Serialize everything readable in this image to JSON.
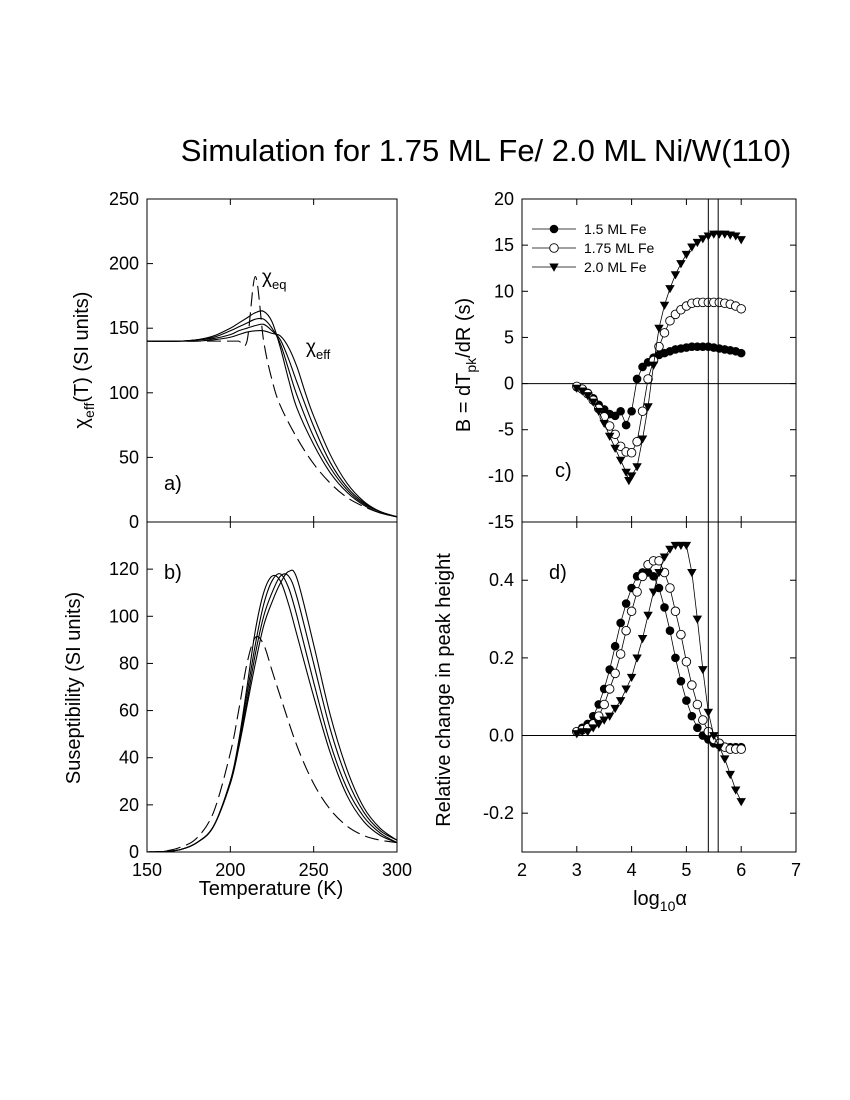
{
  "title": "Simulation for 1.75 ML Fe/ 2.0 ML Ni/W(110)",
  "left": {
    "xlabel": "Temperature (K)",
    "xticks": [
      "150",
      "200",
      "250",
      "300"
    ],
    "xlim": [
      150,
      300
    ]
  },
  "right": {
    "xlabel_prefix": "log",
    "xlabel_sub": "10",
    "xlabel_suffix": "α",
    "xticks": [
      "2",
      "3",
      "4",
      "5",
      "6",
      "7"
    ],
    "xlim": [
      2,
      7
    ],
    "vlines": [
      5.4,
      5.58
    ]
  },
  "chart_data": [
    {
      "id": "a",
      "type": "line",
      "panel_label": "a)",
      "ylabel_main": "χ",
      "ylabel_sub": "eff",
      "ylabel_rest": "(T) (SI units)",
      "ylim": [
        0,
        250
      ],
      "yticks": [
        "0",
        "50",
        "100",
        "150",
        "200",
        "250"
      ],
      "annotations": [
        {
          "main": "χ",
          "sub": "eq"
        },
        {
          "main": "χ",
          "sub": "eff"
        }
      ],
      "series": [
        {
          "style": "dashed",
          "x": [
            150,
            160,
            170,
            180,
            190,
            200,
            205,
            210,
            215,
            220,
            225,
            230,
            240,
            250,
            260,
            270,
            280,
            290,
            300
          ],
          "y": [
            140,
            140,
            140,
            140,
            140,
            140,
            140,
            140,
            190,
            140,
            110,
            90,
            65,
            45,
            30,
            19,
            12,
            7,
            4
          ]
        },
        {
          "style": "solid",
          "x": [
            150,
            170,
            180,
            190,
            200,
            205,
            210,
            215,
            220,
            225,
            230,
            235,
            240,
            250,
            260,
            270,
            280,
            290,
            300
          ],
          "y": [
            140,
            140,
            141,
            144,
            150,
            154,
            158,
            162,
            163,
            155,
            135,
            110,
            88,
            60,
            38,
            23,
            13,
            7,
            4
          ]
        },
        {
          "style": "solid",
          "x": [
            150,
            170,
            180,
            190,
            200,
            205,
            210,
            215,
            220,
            225,
            230,
            235,
            240,
            250,
            260,
            270,
            280,
            290,
            300
          ],
          "y": [
            140,
            140,
            141,
            143,
            148,
            151,
            154,
            157,
            157,
            150,
            138,
            118,
            98,
            66,
            42,
            25,
            14,
            8,
            4
          ]
        },
        {
          "style": "solid",
          "x": [
            150,
            170,
            180,
            190,
            200,
            205,
            210,
            215,
            220,
            225,
            230,
            235,
            240,
            250,
            260,
            270,
            280,
            290,
            300
          ],
          "y": [
            140,
            140,
            141,
            142,
            145,
            148,
            150,
            152,
            153,
            148,
            141,
            126,
            108,
            74,
            46,
            27,
            15,
            8,
            4
          ]
        },
        {
          "style": "solid",
          "x": [
            150,
            170,
            180,
            190,
            200,
            205,
            210,
            215,
            220,
            225,
            230,
            235,
            240,
            245,
            250,
            260,
            270,
            280,
            290,
            300
          ],
          "y": [
            140,
            140,
            140,
            141,
            143,
            145,
            147,
            148,
            148,
            146,
            144,
            135,
            120,
            100,
            82,
            52,
            30,
            16,
            8,
            4
          ]
        }
      ]
    },
    {
      "id": "b",
      "type": "line",
      "panel_label": "b)",
      "ylabel": "Suseptibility (SI units)",
      "ylim": [
        0,
        140
      ],
      "yticks": [
        "0",
        "20",
        "40",
        "60",
        "80",
        "100",
        "120"
      ],
      "series": [
        {
          "style": "dashed",
          "x": [
            150,
            160,
            170,
            180,
            190,
            200,
            205,
            210,
            215,
            220,
            225,
            230,
            240,
            250,
            260,
            270,
            280,
            290,
            300
          ],
          "y": [
            0,
            0.3,
            2,
            6,
            17,
            42,
            60,
            80,
            91,
            88,
            77,
            66,
            45,
            29,
            18,
            11,
            7,
            5,
            4
          ]
        },
        {
          "style": "solid",
          "x": [
            150,
            160,
            170,
            180,
            190,
            200,
            205,
            210,
            215,
            220,
            225,
            230,
            235,
            240,
            250,
            260,
            270,
            280,
            290,
            300
          ],
          "y": [
            0,
            0.2,
            1,
            4,
            11,
            30,
            47,
            70,
            94,
            110,
            117,
            115,
            105,
            92,
            66,
            42,
            24,
            13,
            7,
            4
          ]
        },
        {
          "style": "solid",
          "x": [
            150,
            160,
            170,
            180,
            190,
            200,
            205,
            210,
            215,
            220,
            225,
            230,
            235,
            240,
            250,
            260,
            270,
            280,
            290,
            300
          ],
          "y": [
            0,
            0.2,
            1,
            4,
            11,
            30,
            46,
            67,
            88,
            105,
            115,
            118,
            112,
            100,
            72,
            46,
            27,
            15,
            8,
            4
          ]
        },
        {
          "style": "solid",
          "x": [
            150,
            160,
            170,
            180,
            190,
            200,
            205,
            210,
            215,
            220,
            225,
            230,
            235,
            240,
            250,
            260,
            270,
            280,
            290,
            300
          ],
          "y": [
            0,
            0.2,
            1,
            4,
            11,
            30,
            45,
            64,
            84,
            100,
            110,
            117,
            117,
            108,
            80,
            52,
            31,
            17,
            9,
            5
          ]
        },
        {
          "style": "solid",
          "x": [
            150,
            160,
            170,
            180,
            190,
            200,
            205,
            210,
            215,
            220,
            225,
            230,
            235,
            240,
            250,
            260,
            270,
            280,
            290,
            300
          ],
          "y": [
            0,
            0.2,
            1,
            4,
            11,
            29,
            44,
            62,
            80,
            96,
            106,
            114,
            119,
            116,
            88,
            58,
            35,
            19,
            10,
            5
          ]
        }
      ]
    },
    {
      "id": "c",
      "type": "scatter",
      "panel_label": "c)",
      "ylabel_prefix": "B = dT",
      "ylabel_sub": "pk",
      "ylabel_suffix": "/dR (s)",
      "ylim": [
        -15,
        20
      ],
      "yticks": [
        "-15",
        "-10",
        "-5",
        "0",
        "5",
        "10",
        "15",
        "20"
      ],
      "hline": 0,
      "legend_position": "top-left",
      "series": [
        {
          "name": "1.5 ML Fe",
          "marker": "filled-circle",
          "x": [
            3.0,
            3.1,
            3.2,
            3.3,
            3.4,
            3.5,
            3.6,
            3.7,
            3.8,
            3.9,
            4.0,
            4.1,
            4.2,
            4.3,
            4.4,
            4.5,
            4.6,
            4.7,
            4.8,
            4.9,
            5.0,
            5.1,
            5.2,
            5.3,
            5.4,
            5.5,
            5.6,
            5.7,
            5.8,
            5.9,
            6.0
          ],
          "y": [
            -0.4,
            -0.6,
            -1.0,
            -1.6,
            -2.3,
            -2.8,
            -3.3,
            -3.5,
            -3.0,
            -4.5,
            -3.0,
            0.5,
            1.8,
            2.3,
            2.8,
            3.1,
            3.3,
            3.5,
            3.7,
            3.8,
            3.9,
            4.0,
            4.0,
            4.0,
            4.0,
            3.9,
            3.8,
            3.7,
            3.6,
            3.5,
            3.3
          ]
        },
        {
          "name": "1.75 ML Fe",
          "marker": "open-circle",
          "x": [
            3.0,
            3.1,
            3.2,
            3.3,
            3.4,
            3.5,
            3.6,
            3.7,
            3.8,
            3.9,
            4.0,
            4.1,
            4.2,
            4.3,
            4.4,
            4.5,
            4.6,
            4.7,
            4.8,
            4.9,
            5.0,
            5.1,
            5.2,
            5.3,
            5.4,
            5.5,
            5.6,
            5.7,
            5.8,
            5.9,
            6.0
          ],
          "y": [
            -0.3,
            -0.6,
            -1.1,
            -1.8,
            -2.7,
            -3.6,
            -4.6,
            -5.5,
            -6.8,
            -7.4,
            -7.5,
            -6.3,
            -3.0,
            0.5,
            2.5,
            4.0,
            5.5,
            6.8,
            7.5,
            8.0,
            8.4,
            8.7,
            8.8,
            8.8,
            8.8,
            8.8,
            8.8,
            8.7,
            8.6,
            8.4,
            8.1
          ]
        },
        {
          "name": "2.0 ML Fe",
          "marker": "filled-triangle-down",
          "x": [
            3.0,
            3.1,
            3.2,
            3.3,
            3.4,
            3.5,
            3.6,
            3.7,
            3.8,
            3.9,
            3.95,
            4.0,
            4.1,
            4.2,
            4.3,
            4.4,
            4.5,
            4.6,
            4.7,
            4.8,
            4.9,
            5.0,
            5.1,
            5.2,
            5.3,
            5.4,
            5.5,
            5.6,
            5.7,
            5.8,
            5.9,
            6.0
          ],
          "y": [
            -0.5,
            -0.8,
            -1.3,
            -2.0,
            -3.0,
            -4.3,
            -5.7,
            -7.0,
            -8.3,
            -9.6,
            -10.5,
            -10.0,
            -9.0,
            -6.0,
            -2.5,
            2.0,
            6.0,
            8.5,
            10.3,
            11.8,
            13.0,
            14.0,
            14.8,
            15.3,
            15.7,
            16.0,
            16.2,
            16.2,
            16.2,
            16.1,
            16.0,
            15.6
          ]
        }
      ]
    },
    {
      "id": "d",
      "type": "scatter",
      "panel_label": "d)",
      "ylabel": "Relative change in peak height",
      "ylim": [
        -0.3,
        0.55
      ],
      "yticks": [
        "-0.2",
        "0.0",
        "0.2",
        "0.4"
      ],
      "hline": 0,
      "series": [
        {
          "name": "1.5 ML Fe",
          "marker": "filled-circle",
          "x": [
            3.0,
            3.1,
            3.2,
            3.3,
            3.4,
            3.5,
            3.6,
            3.7,
            3.8,
            3.9,
            4.0,
            4.1,
            4.2,
            4.3,
            4.4,
            4.5,
            4.6,
            4.7,
            4.8,
            4.9,
            5.0,
            5.1,
            5.2,
            5.3,
            5.4,
            5.5,
            5.6,
            5.7,
            5.8,
            5.9,
            6.0
          ],
          "y": [
            0.01,
            0.02,
            0.03,
            0.05,
            0.08,
            0.12,
            0.17,
            0.23,
            0.29,
            0.34,
            0.38,
            0.41,
            0.42,
            0.42,
            0.41,
            0.38,
            0.33,
            0.27,
            0.2,
            0.14,
            0.09,
            0.05,
            0.02,
            0.0,
            -0.01,
            -0.02,
            -0.025,
            -0.03,
            -0.03,
            -0.03,
            -0.03
          ]
        },
        {
          "name": "1.75 ML Fe",
          "marker": "open-circle",
          "x": [
            3.0,
            3.1,
            3.2,
            3.3,
            3.4,
            3.5,
            3.6,
            3.7,
            3.8,
            3.9,
            4.0,
            4.1,
            4.2,
            4.3,
            4.4,
            4.5,
            4.6,
            4.7,
            4.8,
            4.9,
            5.0,
            5.1,
            5.2,
            5.3,
            5.4,
            5.5,
            5.6,
            5.7,
            5.8,
            5.9,
            6.0
          ],
          "y": [
            0.01,
            0.015,
            0.02,
            0.03,
            0.05,
            0.08,
            0.12,
            0.16,
            0.21,
            0.27,
            0.32,
            0.37,
            0.41,
            0.44,
            0.45,
            0.45,
            0.42,
            0.38,
            0.32,
            0.26,
            0.19,
            0.13,
            0.08,
            0.04,
            0.01,
            -0.01,
            -0.02,
            -0.03,
            -0.035,
            -0.035,
            -0.035
          ]
        },
        {
          "name": "2.0 ML Fe",
          "marker": "filled-triangle-down",
          "x": [
            3.0,
            3.1,
            3.2,
            3.3,
            3.4,
            3.5,
            3.6,
            3.7,
            3.8,
            3.9,
            4.0,
            4.1,
            4.2,
            4.3,
            4.4,
            4.5,
            4.6,
            4.7,
            4.8,
            4.9,
            5.0,
            5.1,
            5.2,
            5.3,
            5.4,
            5.5,
            5.6,
            5.7,
            5.8,
            5.9,
            6.0
          ],
          "y": [
            0.005,
            0.01,
            0.01,
            0.02,
            0.03,
            0.04,
            0.05,
            0.07,
            0.09,
            0.12,
            0.15,
            0.2,
            0.25,
            0.31,
            0.37,
            0.42,
            0.46,
            0.48,
            0.49,
            0.49,
            0.49,
            0.42,
            0.3,
            0.17,
            0.06,
            0.0,
            -0.03,
            -0.06,
            -0.1,
            -0.14,
            -0.17
          ]
        }
      ]
    }
  ]
}
